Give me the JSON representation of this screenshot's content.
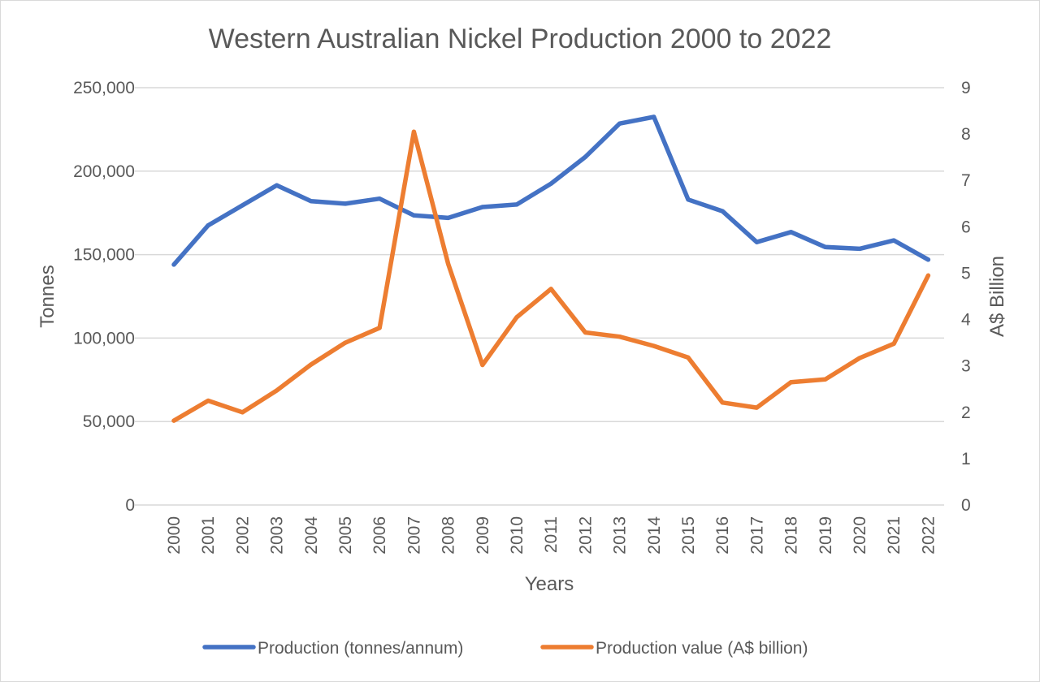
{
  "chart_data": {
    "type": "line",
    "title": "Western Australian Nickel Production 2000 to 2022",
    "xlabel": "Years",
    "ylabel": "Tonnes",
    "y2label": "A$ Billion",
    "ylim": [
      0,
      250000
    ],
    "y2lim": [
      0,
      9
    ],
    "grid": true,
    "legend_position": "bottom",
    "y_ticks": [
      "0",
      "50,000",
      "100,000",
      "150,000",
      "200,000",
      "250,000"
    ],
    "y2_ticks": [
      "0",
      "1",
      "2",
      "3",
      "4",
      "5",
      "6",
      "7",
      "8",
      "9"
    ],
    "categories": [
      "2000",
      "2001",
      "2002",
      "2003",
      "2004",
      "2005",
      "2006",
      "2007",
      "2008",
      "2009",
      "2010",
      "2011",
      "2012",
      "2013",
      "2014",
      "2015",
      "2016",
      "2017",
      "2018",
      "2019",
      "2020",
      "2021",
      "2022"
    ],
    "series": [
      {
        "name": "Production (tonnes/annum)",
        "axis": "left",
        "color": "#4472c4",
        "values": [
          144000,
          167500,
          179500,
          191500,
          182000,
          180500,
          183500,
          173500,
          172000,
          178500,
          180000,
          192500,
          208500,
          228500,
          232500,
          183000,
          176000,
          157500,
          163500,
          154500,
          153500,
          158500,
          147000
        ]
      },
      {
        "name": "Production value (A$ billion)",
        "axis": "right",
        "color": "#ed7d31",
        "values": [
          1.82,
          2.25,
          2.0,
          2.47,
          3.03,
          3.5,
          3.82,
          8.05,
          5.2,
          3.02,
          4.05,
          4.66,
          3.72,
          3.63,
          3.43,
          3.18,
          2.21,
          2.1,
          2.65,
          2.71,
          3.17,
          3.48,
          4.95
        ]
      }
    ]
  }
}
